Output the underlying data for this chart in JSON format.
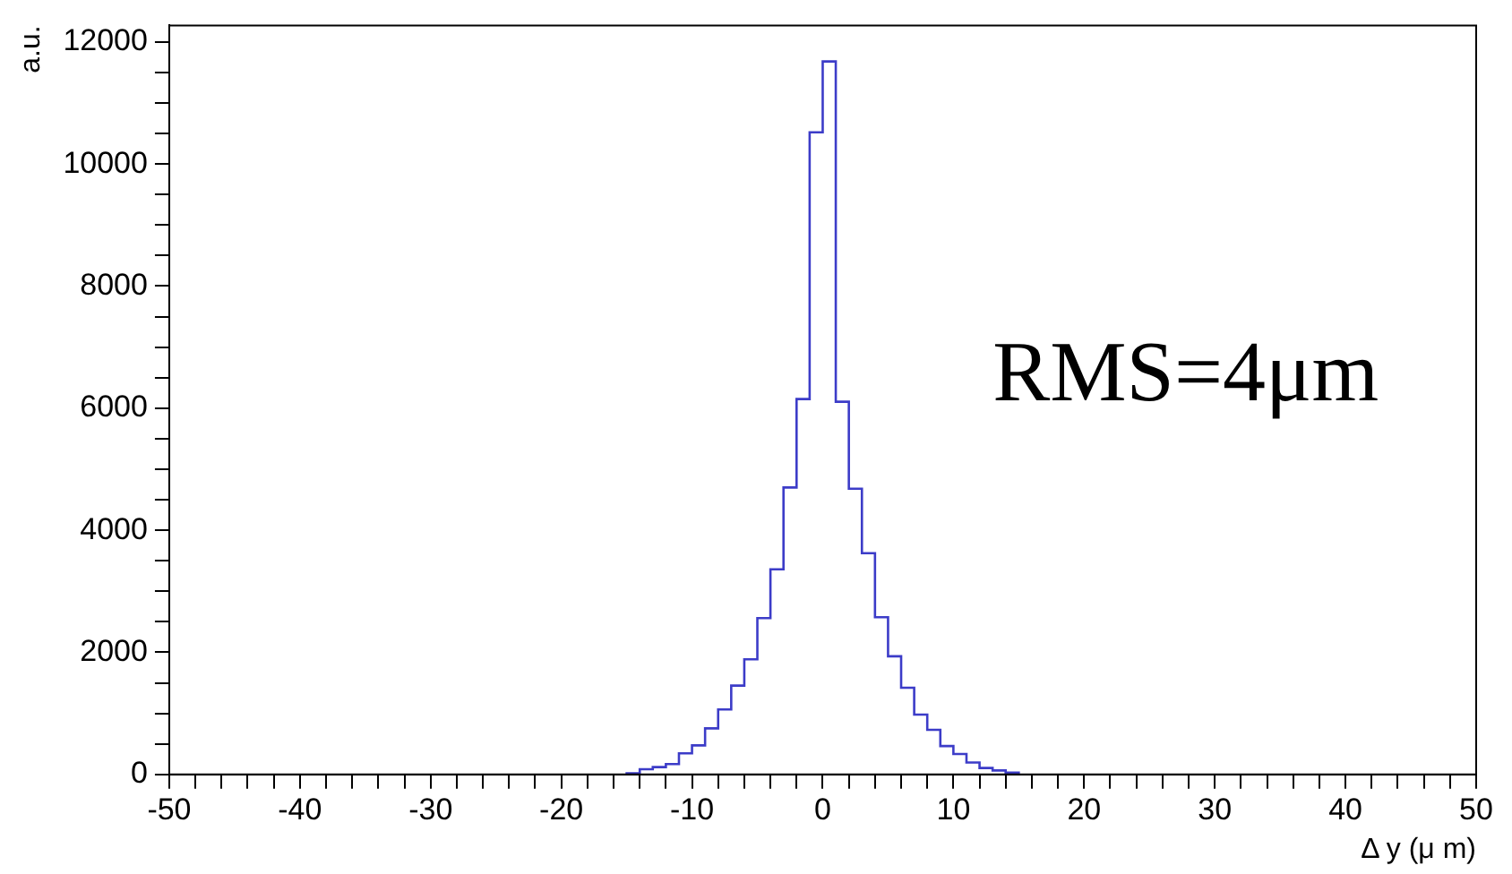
{
  "chart_data": {
    "type": "histogram",
    "xlabel": "Δ y (μ m)",
    "ylabel": "a.u.",
    "annotations": [
      "RMS=4μm"
    ],
    "bins": [
      -15,
      -14,
      -13,
      -12,
      -11,
      -10,
      -9,
      -8,
      -7,
      -6,
      -5,
      -4,
      -3,
      -2,
      -1,
      0,
      1,
      2,
      3,
      4,
      5,
      6,
      7,
      8,
      9,
      10,
      11,
      12,
      13,
      14,
      15
    ],
    "values": [
      20,
      85,
      120,
      170,
      345,
      475,
      755,
      1065,
      1455,
      1885,
      2560,
      3360,
      4700,
      6150,
      10520,
      11680,
      6105,
      4680,
      3625,
      2575,
      1935,
      1420,
      980,
      730,
      465,
      335,
      195,
      105,
      65,
      30
    ],
    "color": "#3c3cc8",
    "xlim": [
      -50,
      50
    ],
    "xticks": [
      -50,
      {
        "value": -48,
        "label": null
      },
      {
        "value": -46,
        "label": null
      },
      {
        "value": -44,
        "label": null
      },
      {
        "value": -42,
        "label": null
      },
      -40,
      {
        "value": -38,
        "label": null
      },
      {
        "value": -36,
        "label": null
      },
      {
        "value": -34,
        "label": null
      },
      {
        "value": -32,
        "label": null
      },
      -30,
      {
        "value": -28,
        "label": null
      },
      {
        "value": -26,
        "label": null
      },
      {
        "value": -24,
        "label": null
      },
      {
        "value": -22,
        "label": null
      },
      -20,
      {
        "value": -18,
        "label": null
      },
      {
        "value": -16,
        "label": null
      },
      {
        "value": -14,
        "label": null
      },
      {
        "value": -12,
        "label": null
      },
      -10,
      {
        "value": -8,
        "label": null
      },
      {
        "value": -6,
        "label": null
      },
      {
        "value": -4,
        "label": null
      },
      {
        "value": -2,
        "label": null
      },
      0,
      {
        "value": 2,
        "label": null
      },
      {
        "value": 4,
        "label": null
      },
      {
        "value": 6,
        "label": null
      },
      {
        "value": 8,
        "label": null
      },
      10,
      {
        "value": 12,
        "label": null
      },
      {
        "value": 14,
        "label": null
      },
      {
        "value": 16,
        "label": null
      },
      {
        "value": 18,
        "label": null
      },
      20,
      {
        "value": 22,
        "label": null
      },
      {
        "value": 24,
        "label": null
      },
      {
        "value": 26,
        "label": null
      },
      {
        "value": 28,
        "label": null
      },
      30,
      {
        "value": 32,
        "label": null
      },
      {
        "value": 34,
        "label": null
      },
      {
        "value": 36,
        "label": null
      },
      {
        "value": 38,
        "label": null
      },
      40,
      {
        "value": 42,
        "label": null
      },
      {
        "value": 44,
        "label": null
      },
      {
        "value": 46,
        "label": null
      },
      {
        "value": 48,
        "label": null
      },
      50
    ],
    "ylim": [
      0,
      12270
    ],
    "yticks": [
      0,
      {
        "value": 500,
        "label": null
      },
      {
        "value": 1000,
        "label": null
      },
      {
        "value": 1500,
        "label": null
      },
      2000,
      {
        "value": 2500,
        "label": null
      },
      {
        "value": 3000,
        "label": null
      },
      {
        "value": 3500,
        "label": null
      },
      4000,
      {
        "value": 4500,
        "label": null
      },
      {
        "value": 5000,
        "label": null
      },
      {
        "value": 5500,
        "label": null
      },
      6000,
      {
        "value": 6500,
        "label": null
      },
      {
        "value": 7000,
        "label": null
      },
      {
        "value": 7500,
        "label": null
      },
      8000,
      {
        "value": 8500,
        "label": null
      },
      {
        "value": 9000,
        "label": null
      },
      {
        "value": 9500,
        "label": null
      },
      10000,
      {
        "value": 10500,
        "label": null
      },
      {
        "value": 11000,
        "label": null
      },
      {
        "value": 11500,
        "label": null
      },
      12000
    ],
    "grid": false,
    "legend": false
  }
}
